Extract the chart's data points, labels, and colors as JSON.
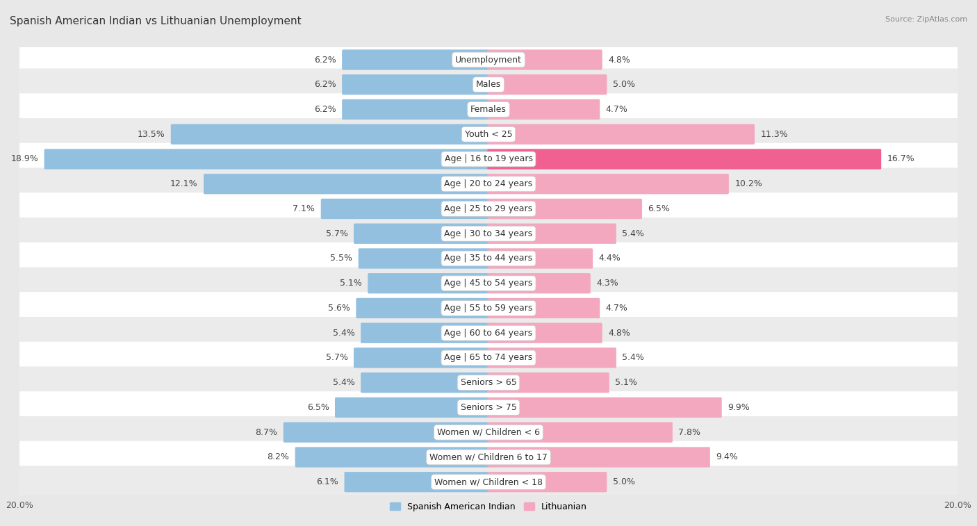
{
  "title": "Spanish American Indian vs Lithuanian Unemployment",
  "source": "Source: ZipAtlas.com",
  "categories": [
    "Unemployment",
    "Males",
    "Females",
    "Youth < 25",
    "Age | 16 to 19 years",
    "Age | 20 to 24 years",
    "Age | 25 to 29 years",
    "Age | 30 to 34 years",
    "Age | 35 to 44 years",
    "Age | 45 to 54 years",
    "Age | 55 to 59 years",
    "Age | 60 to 64 years",
    "Age | 65 to 74 years",
    "Seniors > 65",
    "Seniors > 75",
    "Women w/ Children < 6",
    "Women w/ Children 6 to 17",
    "Women w/ Children < 18"
  ],
  "spanish_american_indian": [
    6.2,
    6.2,
    6.2,
    13.5,
    18.9,
    12.1,
    7.1,
    5.7,
    5.5,
    5.1,
    5.6,
    5.4,
    5.7,
    5.4,
    6.5,
    8.7,
    8.2,
    6.1
  ],
  "lithuanian": [
    4.8,
    5.0,
    4.7,
    11.3,
    16.7,
    10.2,
    6.5,
    5.4,
    4.4,
    4.3,
    4.7,
    4.8,
    5.4,
    5.1,
    9.9,
    7.8,
    9.4,
    5.0
  ],
  "color_blue": "#94c0e0",
  "color_pink": "#f4a8c0",
  "color_pink_hot": "#f06090",
  "axis_limit": 20.0,
  "background_color": "#e8e8e8",
  "row_color_even": "#ffffff",
  "row_color_odd": "#ebebeb",
  "title_fontsize": 11,
  "label_fontsize": 9,
  "tick_fontsize": 9,
  "legend_fontsize": 9
}
